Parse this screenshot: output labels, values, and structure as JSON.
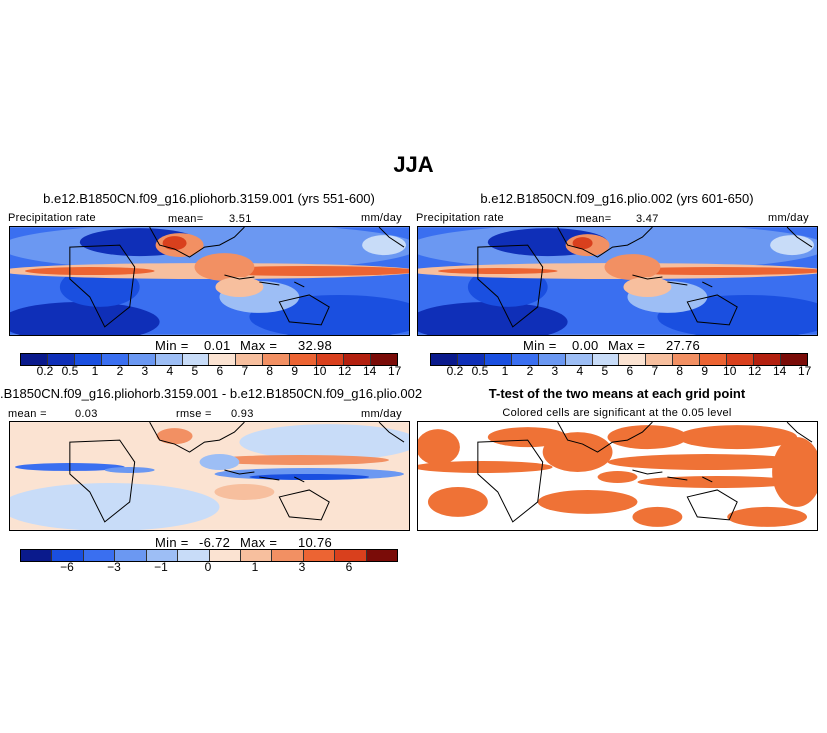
{
  "figure": {
    "title": "JJA"
  },
  "palettes": {
    "main": [
      "#0a1a8c",
      "#0f2fb8",
      "#1a4fe0",
      "#3a6ff0",
      "#6b98f2",
      "#9dbef5",
      "#c8dcf8",
      "#fbe3d2",
      "#f7bf9e",
      "#f29063",
      "#ec6433",
      "#d9401d",
      "#b3200f",
      "#7a0c08"
    ],
    "diff": [
      "#0a1a8c",
      "#1a4fe0",
      "#3a6ff0",
      "#6b98f2",
      "#9dbef5",
      "#c8dcf8",
      "#fbe3d2",
      "#f7bf9e",
      "#f29063",
      "#ec6433",
      "#d9401d",
      "#7a0c08"
    ],
    "ttest": "#ef7236",
    "land_line": "#000000"
  },
  "panels": {
    "p1": {
      "title": "b.e12.B1850CN.f09_g16.pliohorb.3159.001 (yrs 551-600)",
      "var_label": "Precipitation rate",
      "mean_label": "mean=",
      "mean_value": "3.51",
      "units": "mm/day",
      "min_label": "Min =",
      "min_value": "0.01",
      "max_label": "Max =",
      "max_value": "32.98"
    },
    "p2": {
      "title": "b.e12.B1850CN.f09_g16.plio.002 (yrs 601-650)",
      "var_label": "Precipitation rate",
      "mean_label": "mean=",
      "mean_value": "3.47",
      "units": "mm/day",
      "min_label": "Min =",
      "min_value": "0.00",
      "max_label": "Max =",
      "max_value": "27.76"
    },
    "p3": {
      "title": ".B1850CN.f09_g16.pliohorb.3159.001 - b.e12.B1850CN.f09_g16.plio.002",
      "mean_label": "mean =",
      "mean_value": "0.03",
      "rmse_label": "rmse =",
      "rmse_value": "0.93",
      "units": "mm/day",
      "min_label": "Min =",
      "min_value": "-6.72",
      "max_label": "Max =",
      "max_value": "10.76"
    },
    "p4": {
      "title": "T-test of the two means at each grid point",
      "subtitle": "Colored cells are significant at the 0.05 level"
    }
  },
  "colorbar_ticks": {
    "main": [
      "0.2",
      "0.5",
      "1",
      "2",
      "3",
      "4",
      "5",
      "6",
      "7",
      "8",
      "9",
      "10",
      "12",
      "14",
      "17"
    ],
    "diff": [
      "−6",
      "−3",
      "−1",
      "0",
      "1",
      "3",
      "6"
    ]
  }
}
